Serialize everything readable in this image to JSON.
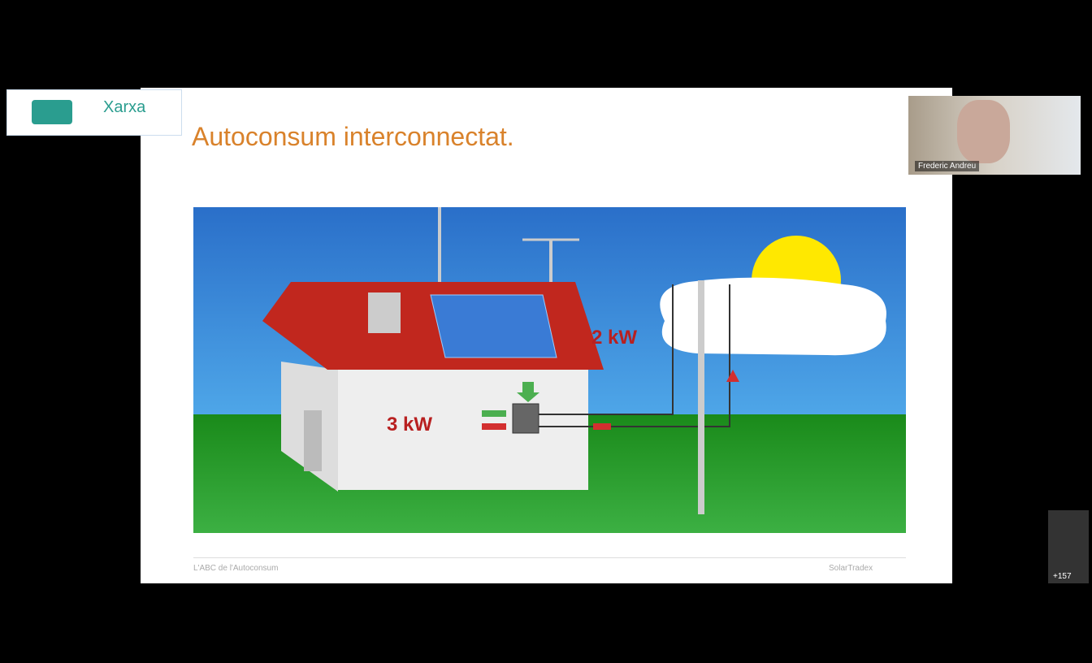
{
  "logo": {
    "name": "Xarxa"
  },
  "slide": {
    "title": "Autoconsum interconnectat.",
    "labels": {
      "house_power": "3 kW",
      "grid_power": "2 kW"
    },
    "footer_left": "L'ABC de l'Autoconsum",
    "footer_right": "SolarTradex"
  },
  "participant": {
    "name": "Frederic Andreu"
  },
  "more_participants": "+157"
}
